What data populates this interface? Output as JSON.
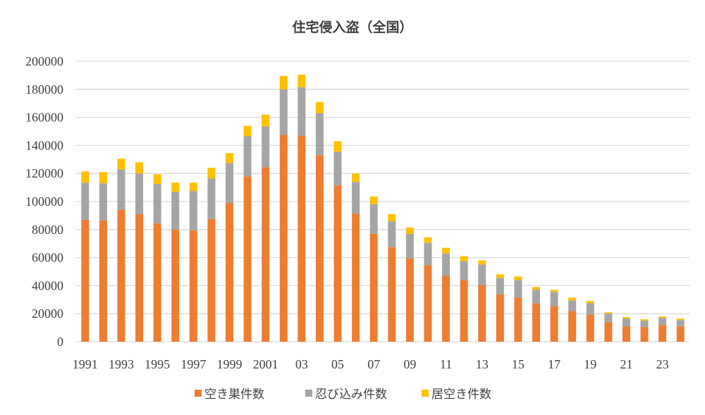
{
  "chart_data": {
    "type": "bar",
    "stacked": true,
    "title": "住宅侵入盗（全国）",
    "xlabel": "",
    "ylabel": "",
    "ylim": [
      0,
      200000
    ],
    "yticks": [
      0,
      20000,
      40000,
      60000,
      80000,
      100000,
      120000,
      140000,
      160000,
      180000,
      200000
    ],
    "grid": true,
    "legend_position": "bottom",
    "x": [
      1991,
      1992,
      1993,
      1994,
      1995,
      1996,
      1997,
      1998,
      1999,
      2000,
      2001,
      2002,
      2003,
      2004,
      2005,
      2006,
      2007,
      2008,
      2009,
      2010,
      2011,
      2012,
      2013,
      2014,
      2015,
      2016,
      2017,
      2018,
      2019,
      2020,
      2021,
      2022,
      2023,
      2024
    ],
    "tick_labels": [
      "1991",
      "",
      "1993",
      "",
      "1995",
      "",
      "1997",
      "",
      "1999",
      "",
      "2001",
      "",
      "03",
      "",
      "05",
      "",
      "07",
      "",
      "09",
      "",
      "11",
      "",
      "13",
      "",
      "15",
      "",
      "17",
      "",
      "19",
      "",
      "21",
      "",
      "23",
      ""
    ],
    "series": [
      {
        "name": "空き巣件数",
        "color": "#ED7D31",
        "values": [
          87000,
          86500,
          94000,
          91000,
          84500,
          80000,
          79500,
          87500,
          99000,
          118000,
          124500,
          147500,
          147000,
          133000,
          111500,
          91500,
          77000,
          67500,
          59500,
          54500,
          47000,
          44000,
          40500,
          34000,
          31500,
          27500,
          25500,
          22000,
          19500,
          14000,
          11000,
          10500,
          12000,
          11000
        ]
      },
      {
        "name": "忍び込み件数",
        "color": "#A5A5A5",
        "values": [
          26500,
          26500,
          29000,
          29000,
          28000,
          27000,
          28000,
          29000,
          28500,
          28500,
          29000,
          32500,
          34500,
          30000,
          24000,
          22500,
          21000,
          18500,
          17500,
          16000,
          16000,
          13500,
          14500,
          11500,
          12500,
          9500,
          10000,
          7500,
          8000,
          6000,
          5500,
          4500,
          5000,
          4500
        ]
      },
      {
        "name": "居空き件数",
        "color": "#FFC000",
        "values": [
          8000,
          8000,
          7500,
          8000,
          7000,
          6500,
          6000,
          7500,
          7000,
          7500,
          8500,
          9500,
          9000,
          8000,
          7500,
          6000,
          5500,
          5000,
          4500,
          4000,
          4000,
          3500,
          3000,
          2500,
          2500,
          2000,
          1500,
          2000,
          1500,
          1000,
          1000,
          1000,
          1000,
          1000
        ]
      }
    ]
  }
}
